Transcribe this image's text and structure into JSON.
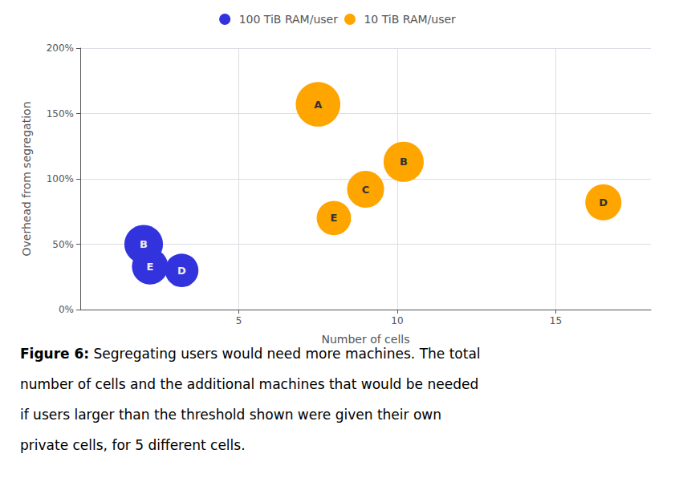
{
  "chart_data": {
    "type": "scatter",
    "xlabel": "Number of cells",
    "ylabel": "Overhead from segregation",
    "xlim": [
      0,
      18
    ],
    "ylim": [
      0,
      2.0
    ],
    "xticks": [
      5,
      10,
      15
    ],
    "yticks": [
      {
        "value": 0.0,
        "label": "0%"
      },
      {
        "value": 0.5,
        "label": "50%"
      },
      {
        "value": 1.0,
        "label": "100%"
      },
      {
        "value": 1.5,
        "label": "150%"
      },
      {
        "value": 2.0,
        "label": "200%"
      }
    ],
    "grid": true,
    "legend": "top",
    "series": [
      {
        "name": "10 TiB RAM/user",
        "color": "#FFA500",
        "x": [
          7.5,
          10.2,
          9.0,
          8.0,
          16.5
        ],
        "values": [
          1.57,
          1.13,
          0.92,
          0.7,
          0.82
        ],
        "sizes": [
          1600,
          1300,
          1100,
          950,
          1050
        ],
        "point_labels": [
          "A",
          "B",
          "C",
          "E",
          "D"
        ]
      },
      {
        "name": "100 TiB RAM/user",
        "color": "#3333DD",
        "x": [
          2.0,
          2.2,
          3.2
        ],
        "values": [
          0.5,
          0.33,
          0.3
        ],
        "sizes": [
          1200,
          1050,
          900
        ],
        "point_labels": [
          "B",
          "E",
          "D"
        ]
      }
    ],
    "caption": [
      "Figure 6: Segregating users would need more machines. The total",
      "number of cells and the additional machines that would be needed",
      "if users larger than the threshold shown were given their own",
      "private cells, for 5 different cells."
    ]
  }
}
